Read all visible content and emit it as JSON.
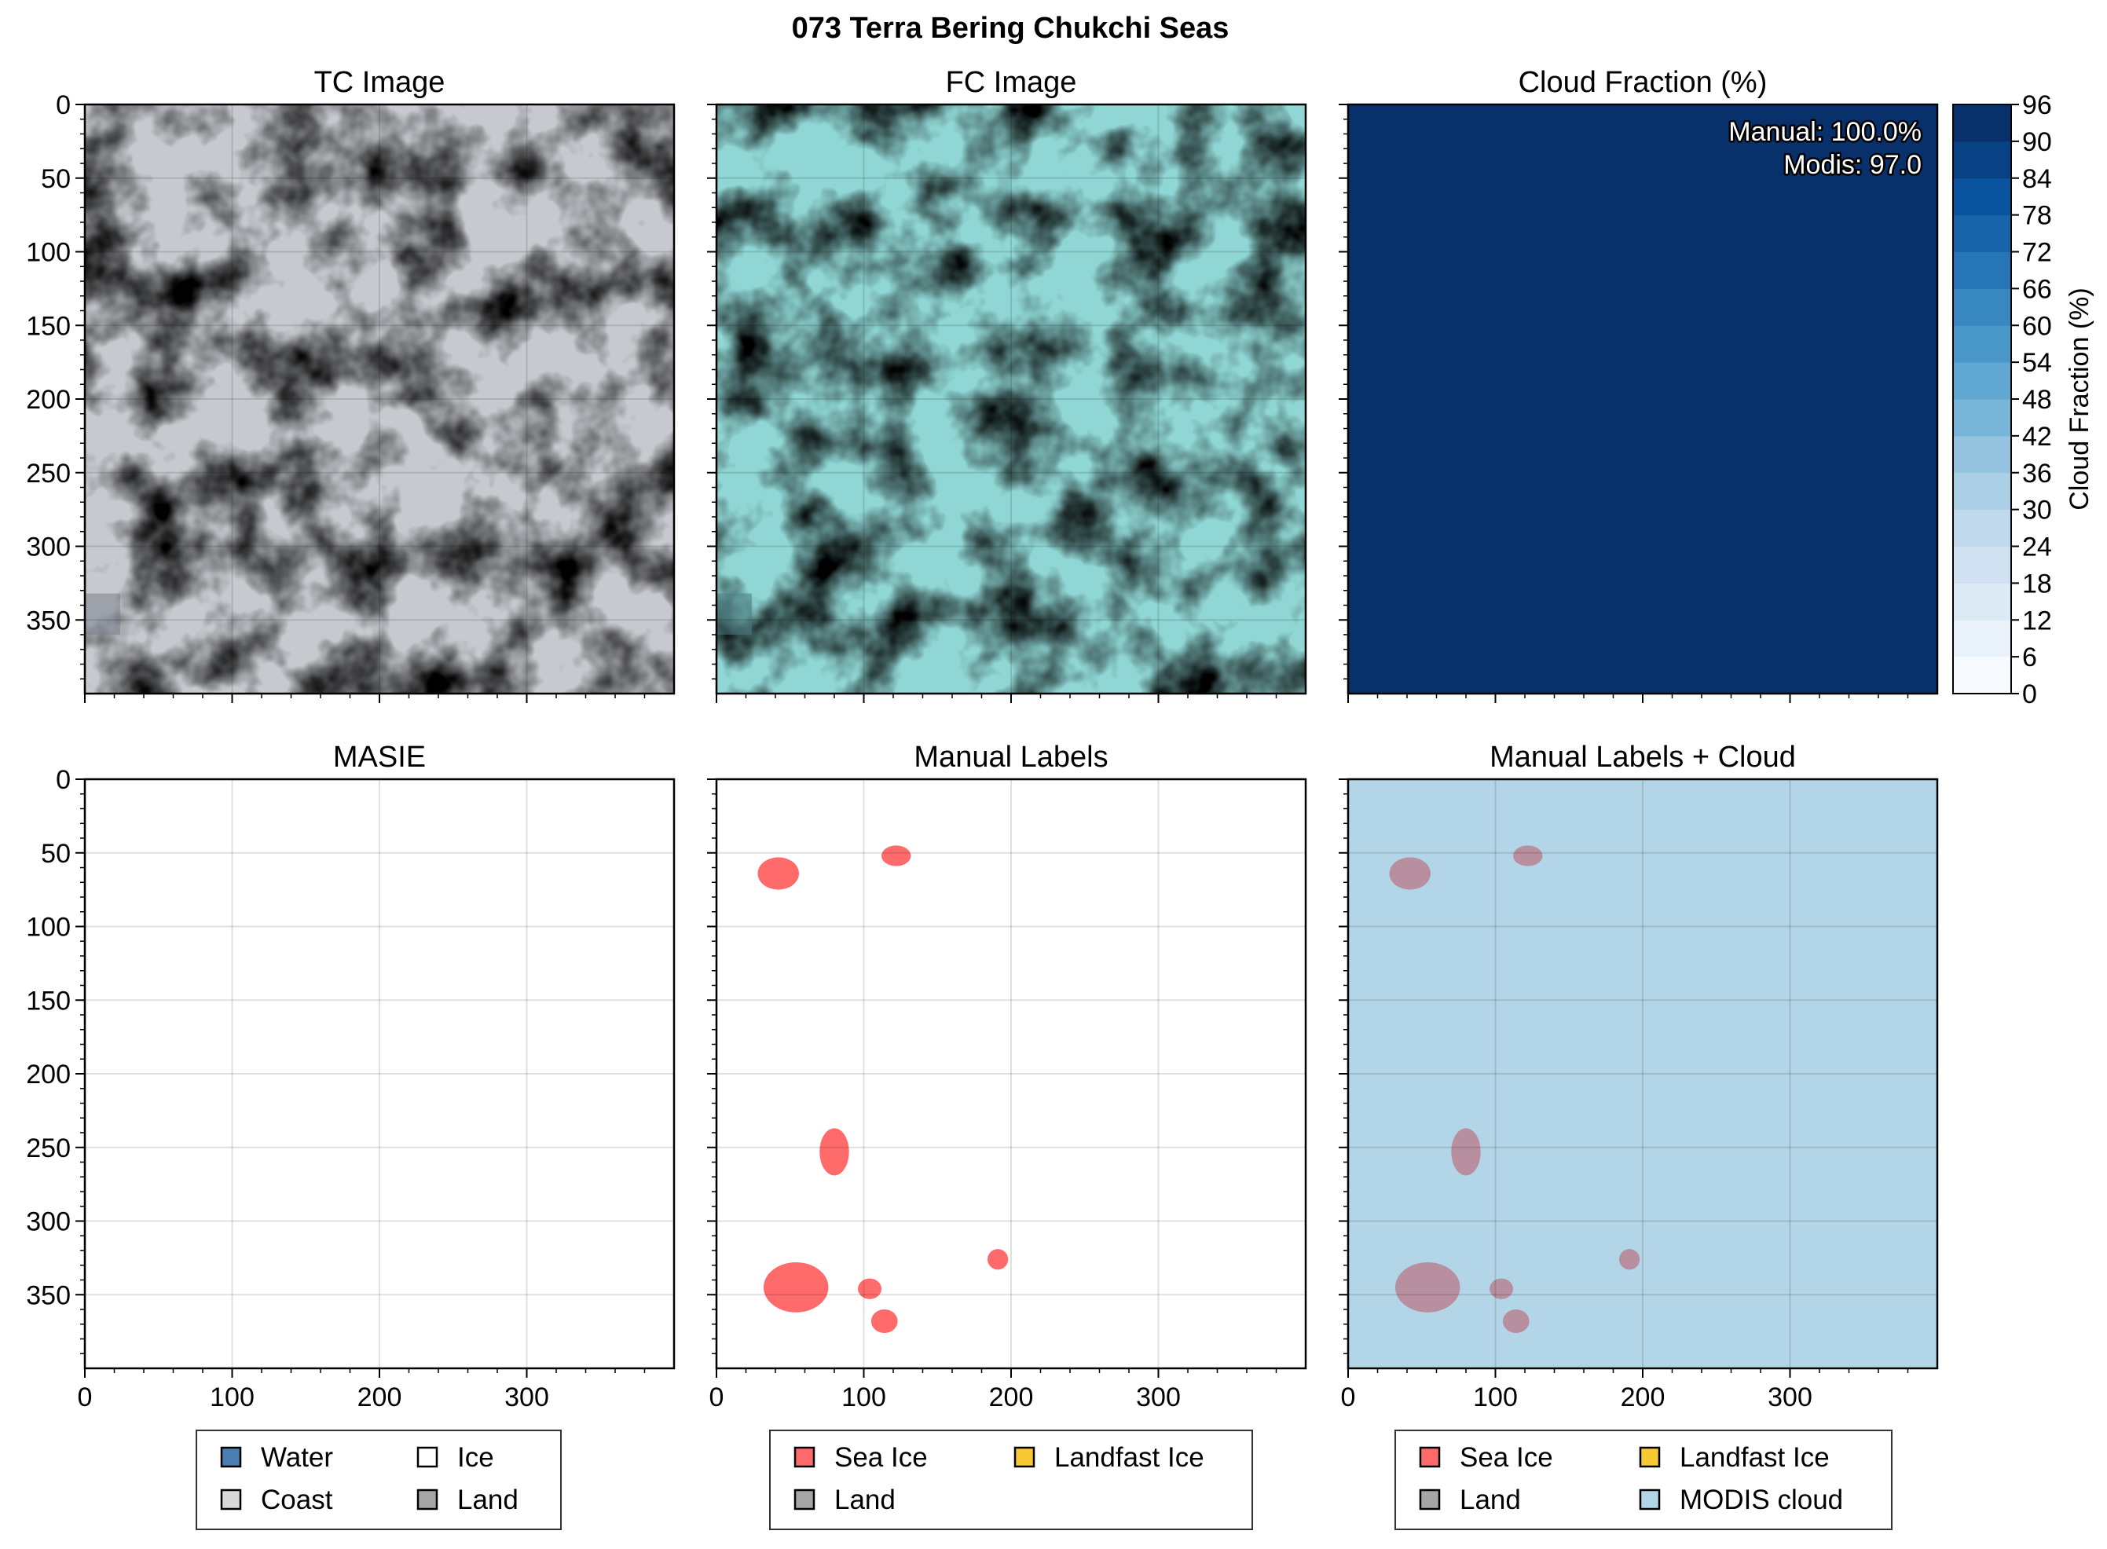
{
  "title": "073 Terra Bering Chukchi Seas",
  "colors": {
    "cloud_fill": "#08306b",
    "sea_ice": "#ff6b6b",
    "landfast_ice": "#f7c932",
    "land": "#a6a6a6",
    "water": "#4a7eb0",
    "coast": "#d9d9d9",
    "ice": "#ffffff",
    "modis_cloud": "#b3d5e8",
    "overlap": "#b88f9e"
  },
  "panels": [
    {
      "id": "tc",
      "title": "TC Image",
      "kind": "image",
      "palette": "truecolor"
    },
    {
      "id": "fc",
      "title": "FC Image",
      "kind": "image",
      "palette": "falsecolor"
    },
    {
      "id": "cf",
      "title": "Cloud Fraction (%)",
      "kind": "cloud",
      "annotations": [
        "Manual: 100.0%",
        "Modis: 97.0"
      ]
    },
    {
      "id": "masie",
      "title": "MASIE",
      "kind": "blank"
    },
    {
      "id": "manual",
      "title": "Manual Labels",
      "kind": "labels"
    },
    {
      "id": "manualcloud",
      "title": "Manual Labels + Cloud",
      "kind": "labels_cloud"
    }
  ],
  "colorbar": {
    "label": "Cloud Fraction (%)",
    "ticks": [
      0,
      6,
      12,
      18,
      24,
      30,
      36,
      42,
      48,
      54,
      60,
      66,
      72,
      78,
      84,
      90,
      96
    ],
    "range": [
      0,
      96
    ],
    "cmap": "Blues"
  },
  "legends": [
    {
      "items": [
        {
          "label": "Water",
          "color": "#4a7eb0"
        },
        {
          "label": "Ice",
          "color": "#ffffff"
        },
        {
          "label": "Coast",
          "color": "#d9d9d9"
        },
        {
          "label": "Land",
          "color": "#a6a6a6"
        }
      ]
    },
    {
      "items": [
        {
          "label": "Sea Ice",
          "color": "#ff6b6b"
        },
        {
          "label": "Landfast Ice",
          "color": "#f7c932"
        },
        {
          "label": "Land",
          "color": "#a6a6a6"
        }
      ]
    },
    {
      "items": [
        {
          "label": "Sea Ice",
          "color": "#ff6b6b"
        },
        {
          "label": "Landfast Ice",
          "color": "#f7c932"
        },
        {
          "label": "Land",
          "color": "#a6a6a6"
        },
        {
          "label": "MODIS cloud",
          "color": "#b3d5e8"
        }
      ]
    }
  ],
  "chart_data": {
    "type": "heatmap",
    "xlim": [
      0,
      400
    ],
    "ylim": [
      0,
      400
    ],
    "y_inverted": true,
    "xticks": [
      0,
      100,
      200,
      300
    ],
    "yticks": [
      0,
      50,
      100,
      150,
      200,
      250,
      300,
      350
    ],
    "grid": true,
    "cloud_fraction_value": 100,
    "sea_ice_regions": [
      {
        "cx": 42,
        "cy": 64,
        "rx": 14,
        "ry": 11
      },
      {
        "cx": 122,
        "cy": 52,
        "rx": 10,
        "ry": 7
      },
      {
        "cx": 80,
        "cy": 253,
        "rx": 10,
        "ry": 16
      },
      {
        "cx": 54,
        "cy": 345,
        "rx": 22,
        "ry": 17
      },
      {
        "cx": 104,
        "cy": 346,
        "rx": 8,
        "ry": 7
      },
      {
        "cx": 114,
        "cy": 368,
        "rx": 9,
        "ry": 8
      },
      {
        "cx": 191,
        "cy": 326,
        "rx": 7,
        "ry": 7
      }
    ]
  }
}
